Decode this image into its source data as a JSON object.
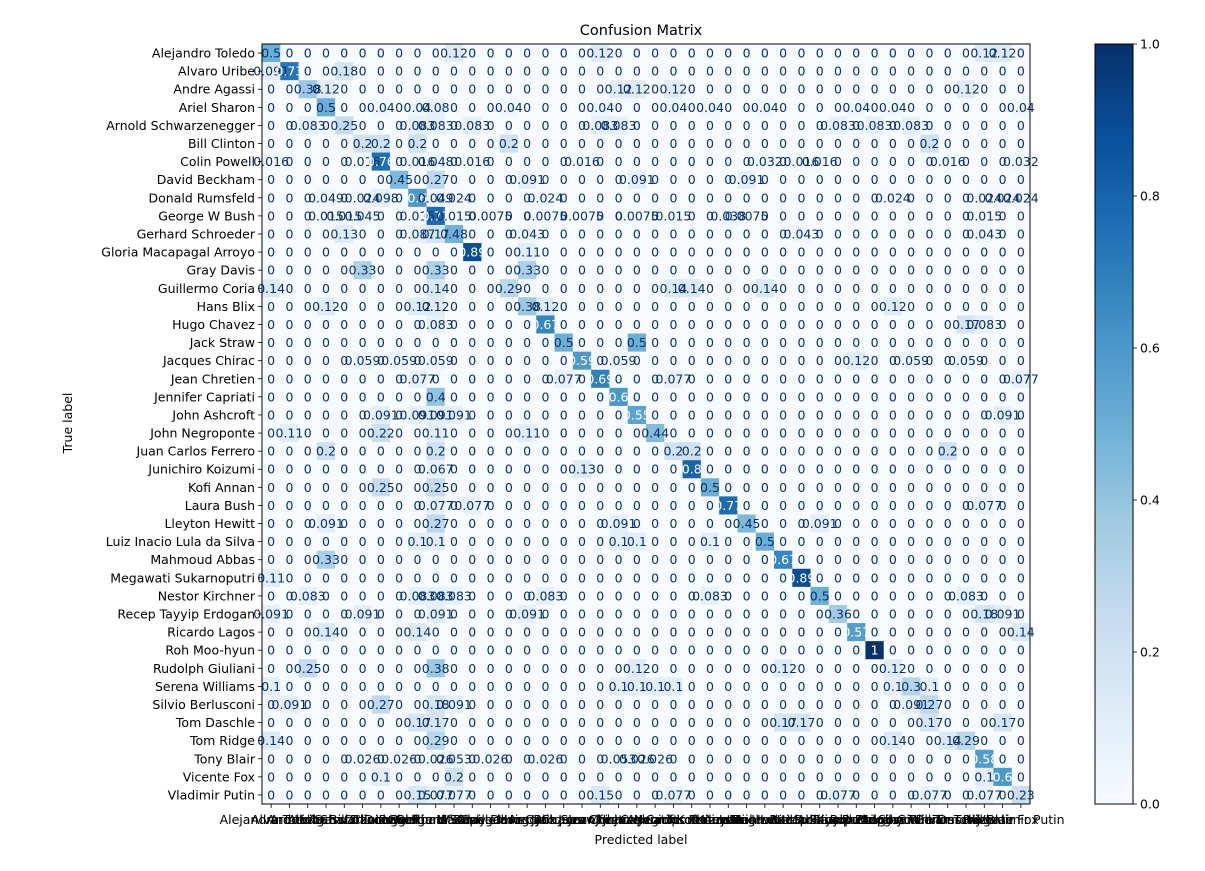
{
  "chart_data": {
    "type": "heatmap",
    "title": "Confusion Matrix",
    "xlabel": "Predicted label",
    "ylabel": "True label",
    "labels": [
      "Alejandro Toledo",
      "Alvaro Uribe",
      "Andre Agassi",
      "Ariel Sharon",
      "Arnold Schwarzenegger",
      "Bill Clinton",
      "Colin Powell",
      "David Beckham",
      "Donald Rumsfeld",
      "George W Bush",
      "Gerhard Schroeder",
      "Gloria Macapagal Arroyo",
      "Gray Davis",
      "Guillermo Coria",
      "Hans Blix",
      "Hugo Chavez",
      "Jack Straw",
      "Jacques Chirac",
      "Jean Chretien",
      "Jennifer Capriati",
      "John Ashcroft",
      "John Negroponte",
      "Juan Carlos Ferrero",
      "Junichiro Koizumi",
      "Kofi Annan",
      "Laura Bush",
      "Lleyton Hewitt",
      "Luiz Inacio Lula da Silva",
      "Mahmoud Abbas",
      "Megawati Sukarnoputri",
      "Nestor Kirchner",
      "Recep Tayyip Erdogan",
      "Ricardo Lagos",
      "Roh Moo-hyun",
      "Rudolph Giuliani",
      "Serena Williams",
      "Silvio Berlusconi",
      "Tom Daschle",
      "Tom Ridge",
      "Tony Blair",
      "Vicente Fox",
      "Vladimir Putin"
    ],
    "colormap": "Blues",
    "vmin": 0,
    "vmax": 1,
    "colorbar_ticks": [
      "0.0",
      "0.2",
      "0.4",
      "0.6",
      "0.8",
      "1.0"
    ],
    "cells": [
      [
        0,
        0,
        0.5
      ],
      [
        0,
        10,
        0.12
      ],
      [
        0,
        18,
        0.12
      ],
      [
        0,
        39,
        0.12
      ],
      [
        0,
        40,
        0.12
      ],
      [
        1,
        0,
        0.091
      ],
      [
        1,
        1,
        0.73
      ],
      [
        1,
        4,
        0.18
      ],
      [
        2,
        2,
        0.38
      ],
      [
        2,
        3,
        0.12
      ],
      [
        2,
        19,
        0.12
      ],
      [
        2,
        20,
        0.12
      ],
      [
        2,
        22,
        0.12
      ],
      [
        2,
        38,
        0.12
      ],
      [
        3,
        3,
        0.5
      ],
      [
        3,
        6,
        0.04
      ],
      [
        3,
        8,
        0.04
      ],
      [
        3,
        9,
        0.08
      ],
      [
        3,
        13,
        0.04
      ],
      [
        3,
        18,
        0.04
      ],
      [
        3,
        22,
        0.04
      ],
      [
        3,
        24,
        0.04
      ],
      [
        3,
        27,
        0.04
      ],
      [
        3,
        32,
        0.04
      ],
      [
        3,
        34,
        0.04
      ],
      [
        3,
        41,
        0.04
      ],
      [
        4,
        2,
        0.083
      ],
      [
        4,
        4,
        0.25
      ],
      [
        4,
        8,
        0.083
      ],
      [
        4,
        9,
        0.083
      ],
      [
        4,
        11,
        0.083
      ],
      [
        4,
        18,
        0.083
      ],
      [
        4,
        19,
        0.083
      ],
      [
        4,
        31,
        0.083
      ],
      [
        4,
        33,
        0.083
      ],
      [
        4,
        35,
        0.083
      ],
      [
        5,
        5,
        0.2
      ],
      [
        5,
        6,
        0.2
      ],
      [
        5,
        8,
        0.2
      ],
      [
        5,
        13,
        0.2
      ],
      [
        5,
        36,
        0.2
      ],
      [
        6,
        0,
        0.016
      ],
      [
        6,
        5,
        0.016
      ],
      [
        6,
        6,
        0.76
      ],
      [
        6,
        8,
        0.016
      ],
      [
        6,
        9,
        0.048
      ],
      [
        6,
        11,
        0.016
      ],
      [
        6,
        17,
        0.016
      ],
      [
        6,
        27,
        0.032
      ],
      [
        6,
        29,
        0.016
      ],
      [
        6,
        30,
        0.016
      ],
      [
        6,
        37,
        0.016
      ],
      [
        6,
        41,
        0.032
      ],
      [
        7,
        7,
        0.45
      ],
      [
        7,
        9,
        0.27
      ],
      [
        7,
        14,
        0.091
      ],
      [
        7,
        20,
        0.091
      ],
      [
        7,
        26,
        0.091
      ],
      [
        8,
        3,
        0.049
      ],
      [
        8,
        5,
        0.024
      ],
      [
        8,
        6,
        0.098
      ],
      [
        8,
        8,
        0.6
      ],
      [
        8,
        9,
        0.049
      ],
      [
        8,
        10,
        0.024
      ],
      [
        8,
        15,
        0.024
      ],
      [
        8,
        34,
        0.024
      ],
      [
        8,
        39,
        0.024
      ],
      [
        8,
        40,
        0.024
      ],
      [
        8,
        41,
        0.024
      ],
      [
        9,
        3,
        0.015
      ],
      [
        9,
        4,
        0.015
      ],
      [
        9,
        5,
        0.045
      ],
      [
        9,
        8,
        0.015
      ],
      [
        9,
        9,
        0.77
      ],
      [
        9,
        10,
        0.015
      ],
      [
        9,
        12,
        0.0075
      ],
      [
        9,
        15,
        0.0075
      ],
      [
        9,
        17,
        0.0075
      ],
      [
        9,
        20,
        0.0075
      ],
      [
        9,
        22,
        0.015
      ],
      [
        9,
        25,
        0.038
      ],
      [
        9,
        26,
        0.0075
      ],
      [
        9,
        39,
        0.015
      ],
      [
        10,
        4,
        0.13
      ],
      [
        10,
        8,
        0.087
      ],
      [
        10,
        9,
        0.17
      ],
      [
        10,
        10,
        0.48
      ],
      [
        10,
        14,
        0.043
      ],
      [
        10,
        29,
        0.043
      ],
      [
        10,
        39,
        0.043
      ],
      [
        11,
        11,
        0.89
      ],
      [
        11,
        14,
        0.11
      ],
      [
        12,
        5,
        0.33
      ],
      [
        12,
        9,
        0.33
      ],
      [
        12,
        14,
        0.33
      ],
      [
        13,
        0,
        0.14
      ],
      [
        13,
        9,
        0.14
      ],
      [
        13,
        13,
        0.29
      ],
      [
        13,
        22,
        0.14
      ],
      [
        13,
        23,
        0.14
      ],
      [
        13,
        27,
        0.14
      ],
      [
        14,
        3,
        0.12
      ],
      [
        14,
        8,
        0.12
      ],
      [
        14,
        9,
        0.12
      ],
      [
        14,
        14,
        0.38
      ],
      [
        14,
        15,
        0.12
      ],
      [
        14,
        34,
        0.12
      ],
      [
        15,
        9,
        0.083
      ],
      [
        15,
        15,
        0.67
      ],
      [
        15,
        38,
        0.17
      ],
      [
        15,
        39,
        0.083
      ],
      [
        16,
        16,
        0.5
      ],
      [
        16,
        20,
        0.5
      ],
      [
        17,
        5,
        0.059
      ],
      [
        17,
        7,
        0.059
      ],
      [
        17,
        9,
        0.059
      ],
      [
        17,
        17,
        0.59
      ],
      [
        17,
        19,
        0.059
      ],
      [
        17,
        32,
        0.12
      ],
      [
        17,
        35,
        0.059
      ],
      [
        17,
        38,
        0.059
      ],
      [
        18,
        8,
        0.077
      ],
      [
        18,
        16,
        0.077
      ],
      [
        18,
        18,
        0.69
      ],
      [
        18,
        22,
        0.077
      ],
      [
        18,
        41,
        0.077
      ],
      [
        19,
        9,
        0.4
      ],
      [
        19,
        19,
        0.6
      ],
      [
        20,
        6,
        0.091
      ],
      [
        20,
        8,
        0.091
      ],
      [
        20,
        9,
        0.091
      ],
      [
        20,
        10,
        0.091
      ],
      [
        20,
        20,
        0.55
      ],
      [
        20,
        40,
        0.091
      ],
      [
        21,
        1,
        0.11
      ],
      [
        21,
        6,
        0.22
      ],
      [
        21,
        9,
        0.11
      ],
      [
        21,
        14,
        0.11
      ],
      [
        21,
        21,
        0.44
      ],
      [
        22,
        3,
        0.2
      ],
      [
        22,
        9,
        0.2
      ],
      [
        22,
        22,
        0.2
      ],
      [
        22,
        23,
        0.2
      ],
      [
        22,
        37,
        0.2
      ],
      [
        23,
        9,
        0.067
      ],
      [
        23,
        17,
        0.13
      ],
      [
        23,
        23,
        0.8
      ],
      [
        24,
        6,
        0.25
      ],
      [
        24,
        9,
        0.25
      ],
      [
        24,
        24,
        0.5
      ],
      [
        25,
        9,
        0.077
      ],
      [
        25,
        11,
        0.077
      ],
      [
        25,
        25,
        0.77
      ],
      [
        25,
        39,
        0.077
      ],
      [
        26,
        3,
        0.091
      ],
      [
        26,
        9,
        0.27
      ],
      [
        26,
        19,
        0.091
      ],
      [
        26,
        26,
        0.45
      ],
      [
        26,
        30,
        0.091
      ],
      [
        27,
        8,
        0.1
      ],
      [
        27,
        9,
        0.1
      ],
      [
        27,
        19,
        0.1
      ],
      [
        27,
        20,
        0.1
      ],
      [
        27,
        24,
        0.1
      ],
      [
        27,
        27,
        0.5
      ],
      [
        28,
        3,
        0.33
      ],
      [
        28,
        28,
        0.67
      ],
      [
        29,
        0,
        0.11
      ],
      [
        29,
        29,
        0.89
      ],
      [
        30,
        2,
        0.083
      ],
      [
        30,
        8,
        0.083
      ],
      [
        30,
        9,
        0.083
      ],
      [
        30,
        10,
        0.083
      ],
      [
        30,
        15,
        0.083
      ],
      [
        30,
        24,
        0.083
      ],
      [
        30,
        30,
        0.5
      ],
      [
        30,
        38,
        0.083
      ],
      [
        31,
        0,
        0.091
      ],
      [
        31,
        5,
        0.091
      ],
      [
        31,
        9,
        0.091
      ],
      [
        31,
        14,
        0.091
      ],
      [
        31,
        31,
        0.36
      ],
      [
        31,
        39,
        0.18
      ],
      [
        31,
        40,
        0.091
      ],
      [
        32,
        3,
        0.14
      ],
      [
        32,
        8,
        0.14
      ],
      [
        32,
        32,
        0.57
      ],
      [
        32,
        41,
        0.14
      ],
      [
        33,
        33,
        1
      ],
      [
        34,
        2,
        0.25
      ],
      [
        34,
        9,
        0.38
      ],
      [
        34,
        20,
        0.12
      ],
      [
        34,
        28,
        0.12
      ],
      [
        34,
        34,
        0.12
      ],
      [
        35,
        0,
        0.1
      ],
      [
        35,
        19,
        0.1
      ],
      [
        35,
        20,
        0.1
      ],
      [
        35,
        21,
        0.1
      ],
      [
        35,
        22,
        0.1
      ],
      [
        35,
        34,
        0.1
      ],
      [
        35,
        35,
        0.3
      ],
      [
        35,
        36,
        0.1
      ],
      [
        36,
        1,
        0.091
      ],
      [
        36,
        6,
        0.27
      ],
      [
        36,
        9,
        0.18
      ],
      [
        36,
        10,
        0.091
      ],
      [
        36,
        35,
        0.091
      ],
      [
        36,
        36,
        0.27
      ],
      [
        37,
        8,
        0.17
      ],
      [
        37,
        9,
        0.17
      ],
      [
        37,
        28,
        0.17
      ],
      [
        37,
        29,
        0.17
      ],
      [
        37,
        36,
        0.17
      ],
      [
        37,
        40,
        0.17
      ],
      [
        38,
        0,
        0.14
      ],
      [
        38,
        9,
        0.29
      ],
      [
        38,
        34,
        0.14
      ],
      [
        38,
        37,
        0.14
      ],
      [
        38,
        38,
        0.29
      ],
      [
        39,
        5,
        0.026
      ],
      [
        39,
        7,
        0.026
      ],
      [
        39,
        9,
        0.026
      ],
      [
        39,
        10,
        0.053
      ],
      [
        39,
        12,
        0.026
      ],
      [
        39,
        15,
        0.026
      ],
      [
        39,
        19,
        0.053
      ],
      [
        39,
        20,
        0.026
      ],
      [
        39,
        21,
        0.026
      ],
      [
        39,
        39,
        0.58
      ],
      [
        40,
        6,
        0.1
      ],
      [
        40,
        10,
        0.2
      ],
      [
        40,
        39,
        0.1
      ],
      [
        40,
        40,
        0.6
      ],
      [
        41,
        8,
        0.15
      ],
      [
        41,
        9,
        0.077
      ],
      [
        41,
        10,
        0.077
      ],
      [
        41,
        18,
        0.15
      ],
      [
        41,
        22,
        0.077
      ],
      [
        41,
        31,
        0.077
      ],
      [
        41,
        36,
        0.077
      ],
      [
        41,
        39,
        0.077
      ],
      [
        41,
        41,
        0.23
      ]
    ]
  }
}
